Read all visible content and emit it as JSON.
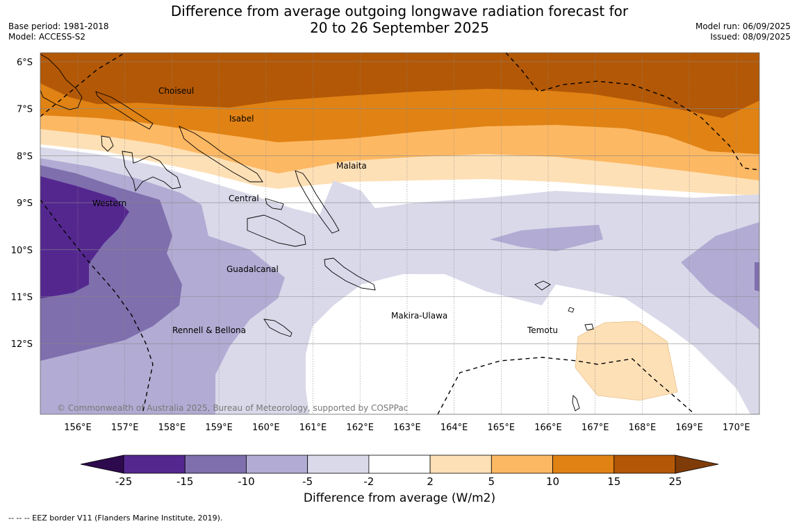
{
  "title_line1": "Difference from average outgoing longwave radiation forecast for",
  "title_line2": "20 to 26 September 2025",
  "meta_left": {
    "base_period": "Base period: 1981-2018",
    "model": "Model: ACCESS-S2"
  },
  "meta_right": {
    "model_run": "Model run: 06/09/2025",
    "issued": "Issued: 08/09/2025"
  },
  "map": {
    "lat_ticks": [
      "6°S",
      "7°S",
      "8°S",
      "9°S",
      "10°S",
      "11°S",
      "12°S"
    ],
    "lon_ticks": [
      "156°E",
      "157°E",
      "158°E",
      "159°E",
      "160°E",
      "161°E",
      "162°E",
      "163°E",
      "164°E",
      "165°E",
      "166°E",
      "167°E",
      "168°E",
      "169°E",
      "170°E"
    ],
    "province_labels": [
      "Choiseul",
      "Isabel",
      "Malaita",
      "Central",
      "Western",
      "Guadalcanal",
      "Makira-Ulawa",
      "Temotu",
      "Rennell & Bellona"
    ],
    "copyright": "© Commonwealth of Australia 2025, Bureau of Meteorology, supported by COSPPac"
  },
  "colorbar": {
    "ticks": [
      "-25",
      "-15",
      "-10",
      "-5",
      "-2",
      "2",
      "5",
      "10",
      "15",
      "25"
    ],
    "colors": [
      "#2d0a4e",
      "#54278f",
      "#7f6fad",
      "#b2abd3",
      "#d9d9ea",
      "#ffffff",
      "#fee0b6",
      "#fdb863",
      "#e08214",
      "#b35806",
      "#7f3b08"
    ],
    "label": "Difference from average (W/m2)"
  },
  "footnote": "--  --  -- EEZ border V11 (Flanders Marine Institute, 2019)."
}
